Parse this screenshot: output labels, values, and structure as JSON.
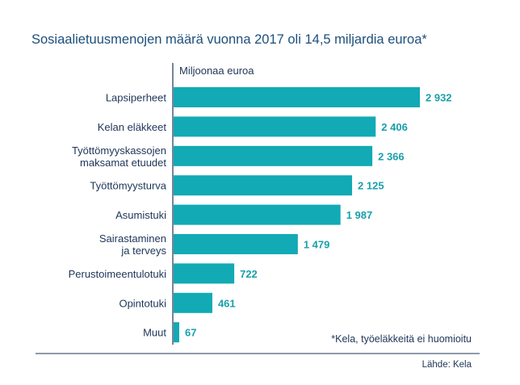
{
  "chart_data": {
    "type": "bar",
    "orientation": "horizontal",
    "title": "Sosiaalietuusmenojen määrä vuonna 2017 oli 14,5 miljardia euroa*",
    "unit_label": "Miljoonaa euroa",
    "categories": [
      [
        "Lapsiperheet"
      ],
      [
        "Kelan eläkkeet"
      ],
      [
        "Työttömyyskassojen",
        "maksamat etuudet"
      ],
      [
        "Työttömyysturva"
      ],
      [
        "Asumistuki"
      ],
      [
        "Sairastaminen",
        "ja terveys"
      ],
      [
        "Perustoimeentulotuki"
      ],
      [
        "Opintotuki"
      ],
      [
        "Muut"
      ]
    ],
    "values": [
      2932,
      2406,
      2366,
      2125,
      1987,
      1479,
      722,
      461,
      67
    ],
    "value_labels": [
      "2 932",
      "2 406",
      "2 366",
      "2 125",
      "1 987",
      "1 479",
      "722",
      "461",
      "67"
    ],
    "footnote": "*Kela, työeläkkeitä ei huomioitu",
    "source": "Lähde: Kela",
    "colors": {
      "bar": "#11aab5",
      "value_text": "#1aa0ab",
      "title": "#1d4f7c",
      "axis": "#1d3557"
    }
  }
}
